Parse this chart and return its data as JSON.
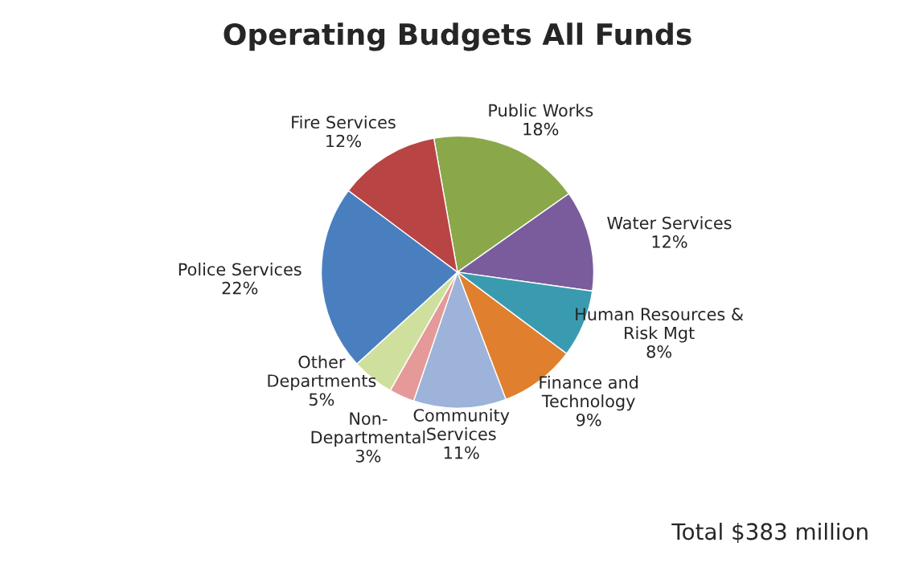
{
  "chart_data": {
    "type": "pie",
    "title": "Operating Budgets All Funds",
    "categories": [
      "Public Works",
      "Water Services",
      "Human Resources &\nRisk Mgt",
      "Finance and\nTechnology",
      "Community\nServices",
      "Non-\nDepartmental",
      "Other\nDepartments",
      "Police Services",
      "Fire Services"
    ],
    "values": [
      18,
      12,
      8,
      9,
      11,
      3,
      5,
      22,
      12
    ],
    "value_labels": [
      "18%",
      "12%",
      "8%",
      "9%",
      "11%",
      "3%",
      "5%",
      "22%",
      "12%"
    ],
    "colors": [
      "#8aa84a",
      "#7a5c9c",
      "#3a9bb0",
      "#e07f2e",
      "#9db3d9",
      "#e59999",
      "#cfe09e",
      "#4a7fbf",
      "#b84444"
    ],
    "annotations": [
      "Total $383 million"
    ]
  }
}
